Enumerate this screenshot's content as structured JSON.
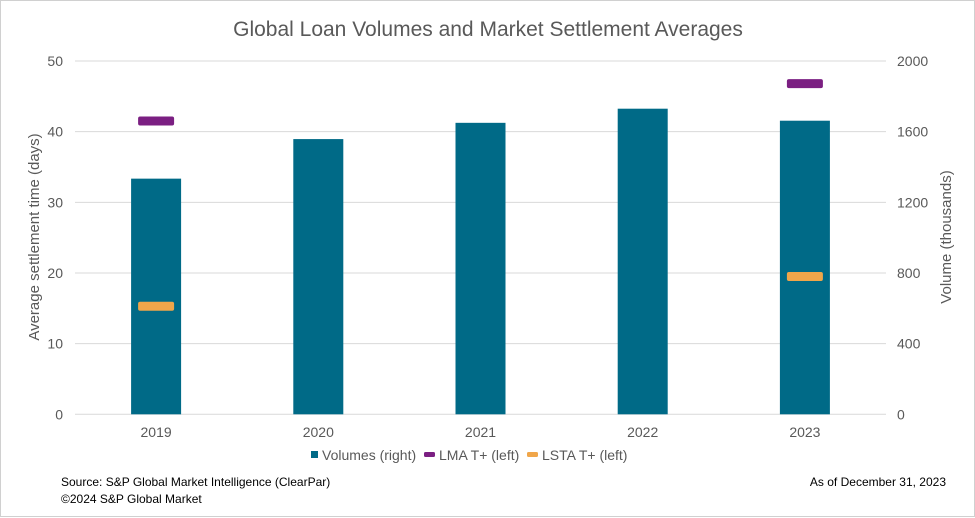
{
  "chart_data": {
    "type": "bar",
    "title": "Global Loan Volumes and Market Settlement Averages",
    "categories": [
      "2019",
      "2020",
      "2021",
      "2022",
      "2023"
    ],
    "ylabel_left": "Average settlement time (days)",
    "ylabel_right": "Volume  (thousands)",
    "ylim_left": [
      0,
      50
    ],
    "ylim_right": [
      0,
      2000
    ],
    "yticks_left": [
      "0",
      "10",
      "20",
      "30",
      "40",
      "50"
    ],
    "yticks_right": [
      "0",
      "400",
      "800",
      "1200",
      "1600",
      "2000"
    ],
    "grid": true,
    "legend_position": "bottom",
    "series": [
      {
        "name": "Volumes (right)",
        "axis": "right",
        "mark": "bar",
        "color": "#006a87",
        "values": [
          1334,
          1558,
          1650,
          1730,
          1662
        ]
      },
      {
        "name": "LMA T+ (left)",
        "axis": "left",
        "mark": "dash",
        "color": "#7b1f82",
        "values": [
          41.5,
          null,
          null,
          null,
          46.8
        ]
      },
      {
        "name": "LSTA T+ (left)",
        "axis": "left",
        "mark": "dash",
        "color": "#f0a64a",
        "values": [
          15.3,
          null,
          null,
          null,
          19.5
        ]
      }
    ]
  },
  "footer": {
    "source": "Source: S&P Global Market Intelligence (ClearPar)",
    "copyright": "©2024 S&P Global Market",
    "as_of": "As of December 31, 2023"
  }
}
